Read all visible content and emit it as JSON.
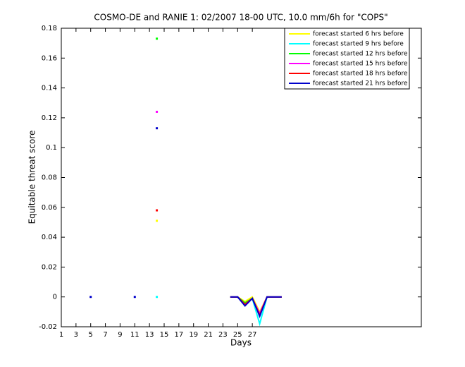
{
  "chart_data": {
    "type": "line",
    "title": "COSMO-DE and RANIE 1: 02/2007 18-00 UTC, 10.0 mm/6h for \"COPS\"",
    "xlabel": "Days",
    "ylabel": "Equitable threat score",
    "x": [
      1,
      2,
      3,
      4,
      5,
      6,
      7,
      8,
      9,
      10,
      11,
      12,
      13,
      14,
      15,
      16,
      17,
      18,
      19,
      20,
      21,
      22,
      23,
      24,
      25,
      26,
      27,
      28,
      29,
      30,
      31
    ],
    "series": [
      {
        "name": "forecast started 6 hrs before",
        "color": "#ffff00",
        "values": [
          null,
          null,
          null,
          null,
          null,
          null,
          null,
          null,
          null,
          null,
          null,
          null,
          null,
          0.051,
          null,
          null,
          null,
          null,
          null,
          null,
          null,
          null,
          null,
          0,
          0,
          -0.003,
          0,
          -0.01,
          0,
          0,
          0
        ]
      },
      {
        "name": "forecast started 9 hrs before",
        "color": "#00ffff",
        "values": [
          null,
          null,
          null,
          null,
          null,
          null,
          null,
          null,
          null,
          null,
          null,
          null,
          null,
          0,
          null,
          null,
          null,
          null,
          null,
          null,
          null,
          null,
          null,
          0,
          0,
          -0.005,
          -0.001,
          -0.018,
          0,
          0,
          0
        ]
      },
      {
        "name": "forecast started 12 hrs before",
        "color": "#00ff00",
        "values": [
          null,
          null,
          null,
          null,
          null,
          null,
          null,
          null,
          null,
          null,
          null,
          null,
          null,
          0.173,
          null,
          null,
          null,
          null,
          null,
          null,
          null,
          null,
          null,
          0,
          0,
          -0.004,
          -0.001,
          -0.012,
          0,
          0,
          0
        ]
      },
      {
        "name": "forecast started 15 hrs before",
        "color": "#ff00ff",
        "values": [
          null,
          null,
          null,
          null,
          null,
          null,
          null,
          null,
          null,
          null,
          null,
          null,
          null,
          0.124,
          null,
          null,
          null,
          null,
          null,
          null,
          null,
          null,
          null,
          0,
          0,
          -0.005,
          -0.001,
          -0.011,
          0,
          0,
          0
        ]
      },
      {
        "name": "forecast started 18 hrs before",
        "color": "#ff0000",
        "values": [
          null,
          null,
          null,
          null,
          null,
          null,
          null,
          null,
          null,
          null,
          null,
          null,
          null,
          0.058,
          null,
          null,
          null,
          null,
          null,
          null,
          null,
          null,
          null,
          0,
          0,
          -0.005,
          -0.001,
          -0.012,
          0,
          0,
          0
        ]
      },
      {
        "name": "forecast started 21 hrs before",
        "color": "#0000cc",
        "values": [
          null,
          null,
          null,
          null,
          0,
          null,
          null,
          null,
          null,
          null,
          0,
          null,
          null,
          0.113,
          null,
          null,
          null,
          null,
          null,
          null,
          null,
          null,
          null,
          0,
          0,
          -0.006,
          -0.001,
          -0.013,
          0,
          0,
          0
        ]
      }
    ],
    "xlim": [
      1,
      50
    ],
    "xticks": [
      1,
      3,
      5,
      7,
      9,
      11,
      13,
      15,
      17,
      19,
      21,
      23,
      25,
      27
    ],
    "ylim": [
      -0.02,
      0.18
    ],
    "yticks": [
      -0.02,
      0,
      0.02,
      0.04,
      0.06,
      0.08,
      0.1,
      0.12,
      0.14,
      0.16,
      0.18
    ],
    "legend": "top-right"
  }
}
